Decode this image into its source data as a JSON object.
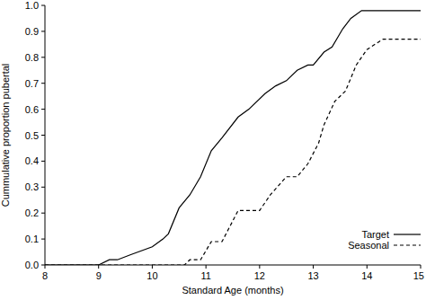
{
  "chart_data": {
    "type": "line",
    "x_label": "Standard Age (months)",
    "y_label": "Cummulative proportion pubertal",
    "xlim": [
      8,
      15
    ],
    "xticks": [
      8,
      9,
      10,
      11,
      12,
      13,
      14,
      15
    ],
    "ylim": [
      0,
      1
    ],
    "yticks": [
      {
        "value": 0,
        "label": "0.0"
      },
      0.1,
      0.2,
      0.3,
      0.4,
      0.5,
      0.6,
      0.7,
      0.8,
      0.9,
      {
        "value": 1,
        "label": "1.0"
      }
    ],
    "grid": false,
    "legend": "lower right",
    "series": [
      {
        "name": "Target",
        "color": "#000000",
        "line_style": "solid",
        "x": [
          8.0,
          9.0,
          9.2,
          9.35,
          9.6,
          10.0,
          10.2,
          10.3,
          10.5,
          10.7,
          10.9,
          11.1,
          11.3,
          11.6,
          11.8,
          12.1,
          12.3,
          12.5,
          12.7,
          12.9,
          13.0,
          13.2,
          13.35,
          13.55,
          13.7,
          13.9,
          15.0
        ],
        "values": [
          0,
          0,
          0.02,
          0.02,
          0.04,
          0.07,
          0.1,
          0.12,
          0.22,
          0.27,
          0.34,
          0.44,
          0.49,
          0.57,
          0.6,
          0.66,
          0.69,
          0.71,
          0.75,
          0.77,
          0.77,
          0.82,
          0.84,
          0.91,
          0.95,
          0.98,
          0.98
        ]
      },
      {
        "name": "Seasonal",
        "color": "#000000",
        "line_style": "dashed",
        "x": [
          8.0,
          10.6,
          10.7,
          10.9,
          11.1,
          11.3,
          11.4,
          11.6,
          12.0,
          12.2,
          12.5,
          12.7,
          12.9,
          13.1,
          13.2,
          13.4,
          13.6,
          13.8,
          14.0,
          14.3,
          15.0
        ],
        "values": [
          0,
          0,
          0.02,
          0.02,
          0.09,
          0.09,
          0.13,
          0.21,
          0.21,
          0.27,
          0.34,
          0.34,
          0.39,
          0.47,
          0.54,
          0.63,
          0.67,
          0.77,
          0.83,
          0.87,
          0.87
        ]
      }
    ]
  }
}
